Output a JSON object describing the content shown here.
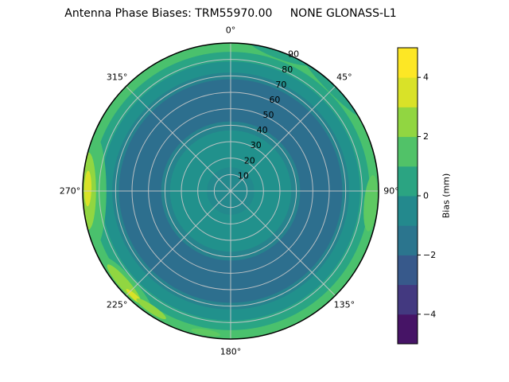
{
  "chart_data": {
    "type": "heatmap",
    "projection": "polar",
    "title": "Antenna Phase Biases: TRM55970.00     NONE GLONASS-L1",
    "azimuth_ticks_deg": [
      0,
      45,
      90,
      135,
      180,
      225,
      270,
      315
    ],
    "azimuth_tick_labels": [
      "0°",
      "45°",
      "90°",
      "135°",
      "180°",
      "225°",
      "270°",
      "315°"
    ],
    "radial_ticks": [
      10,
      20,
      30,
      40,
      50,
      60,
      70,
      80,
      90
    ],
    "radial_tick_labels": [
      "10",
      "20",
      "30",
      "40",
      "50",
      "60",
      "70",
      "80",
      "90"
    ],
    "radial_max": 90,
    "radial_label_azimuth_deg": 22.5,
    "grid": true,
    "colorbar": {
      "label": "Bias (mm)",
      "ticks": [
        -4,
        -2,
        0,
        2,
        4
      ],
      "tick_labels": [
        "−4",
        "−2",
        "0",
        "2",
        "4"
      ],
      "vmin": -5,
      "vmax": 5,
      "level_step": 1,
      "colors_bottom_to_top": [
        "#461466",
        "#433980",
        "#37598b",
        "#2b758e",
        "#23898d",
        "#2ba482",
        "#51c268",
        "#91d641",
        "#d9e228",
        "#fde725"
      ]
    },
    "field_rings": [
      {
        "zenith_frac": 1.0,
        "bias_mm": 2.0,
        "color": "#4ac16d"
      },
      {
        "zenith_frac": 0.94,
        "bias_mm": 1.2,
        "color": "#2aa584"
      },
      {
        "zenith_frac": 0.875,
        "bias_mm": 0.4,
        "color": "#21918c"
      },
      {
        "zenith_frac": 0.8,
        "bias_mm": -0.3,
        "color": "#26838d"
      },
      {
        "zenith_frac": 0.755,
        "bias_mm": -1.2,
        "color": "#2d6f8e"
      },
      {
        "zenith_frac": 0.47,
        "bias_mm": -0.4,
        "color": "#26838d"
      },
      {
        "zenith_frac": 0.41,
        "bias_mm": 0.2,
        "color": "#21918c"
      },
      {
        "zenith_frac": 0.16,
        "bias_mm": -0.1,
        "color": "#23898d"
      }
    ],
    "field_blobs": [
      {
        "azimuth_deg": 270,
        "zenith_frac": 0.93,
        "len_frac": 0.4,
        "wid_frac": 0.09,
        "bias_mm": 2.2,
        "color": "#4ac16d"
      },
      {
        "azimuth_deg": 270,
        "zenith_frac": 0.96,
        "len_frac": 0.26,
        "wid_frac": 0.05,
        "bias_mm": 3.2,
        "color": "#91d641"
      },
      {
        "azimuth_deg": 271,
        "zenith_frac": 0.965,
        "len_frac": 0.12,
        "wid_frac": 0.024,
        "bias_mm": 4.2,
        "color": "#d9e228"
      },
      {
        "azimuth_deg": 228,
        "zenith_frac": 0.95,
        "len_frac": 0.26,
        "wid_frac": 0.06,
        "bias_mm": 2.2,
        "color": "#4ac16d"
      },
      {
        "azimuth_deg": 229,
        "zenith_frac": 0.955,
        "len_frac": 0.17,
        "wid_frac": 0.035,
        "bias_mm": 3.2,
        "color": "#91d641"
      },
      {
        "azimuth_deg": 222,
        "zenith_frac": 0.965,
        "len_frac": 0.08,
        "wid_frac": 0.016,
        "bias_mm": 4.2,
        "color": "#d9e228"
      },
      {
        "azimuth_deg": 214,
        "zenith_frac": 0.96,
        "len_frac": 0.12,
        "wid_frac": 0.025,
        "bias_mm": 3.2,
        "color": "#91d641"
      },
      {
        "azimuth_deg": 95,
        "zenith_frac": 0.95,
        "len_frac": 0.19,
        "wid_frac": 0.045,
        "bias_mm": 2.5,
        "color": "#5ec962"
      },
      {
        "azimuth_deg": 190,
        "zenith_frac": 0.97,
        "len_frac": 0.1,
        "wid_frac": 0.02,
        "bias_mm": 2.5,
        "color": "#5ec962"
      },
      {
        "azimuth_deg": 45,
        "zenith_frac": 0.99,
        "len_frac": 0.3,
        "wid_frac": 0.045,
        "bias_mm": 1.0,
        "color": "#2aa584"
      },
      {
        "azimuth_deg": 20,
        "zenith_frac": 0.99,
        "len_frac": 0.22,
        "wid_frac": 0.04,
        "bias_mm": 1.0,
        "color": "#2aa584"
      }
    ],
    "field_summary": {
      "center_bias_mm": 0,
      "mid_annulus_zenith_range_deg": [
        40,
        70
      ],
      "mid_annulus_bias_mm": -1.2,
      "rim_bias_mm": 2,
      "hotspot_notes": "yellow-green maxima (≈3–4 mm) at rim near azimuths 215°–230° and 270°"
    }
  }
}
